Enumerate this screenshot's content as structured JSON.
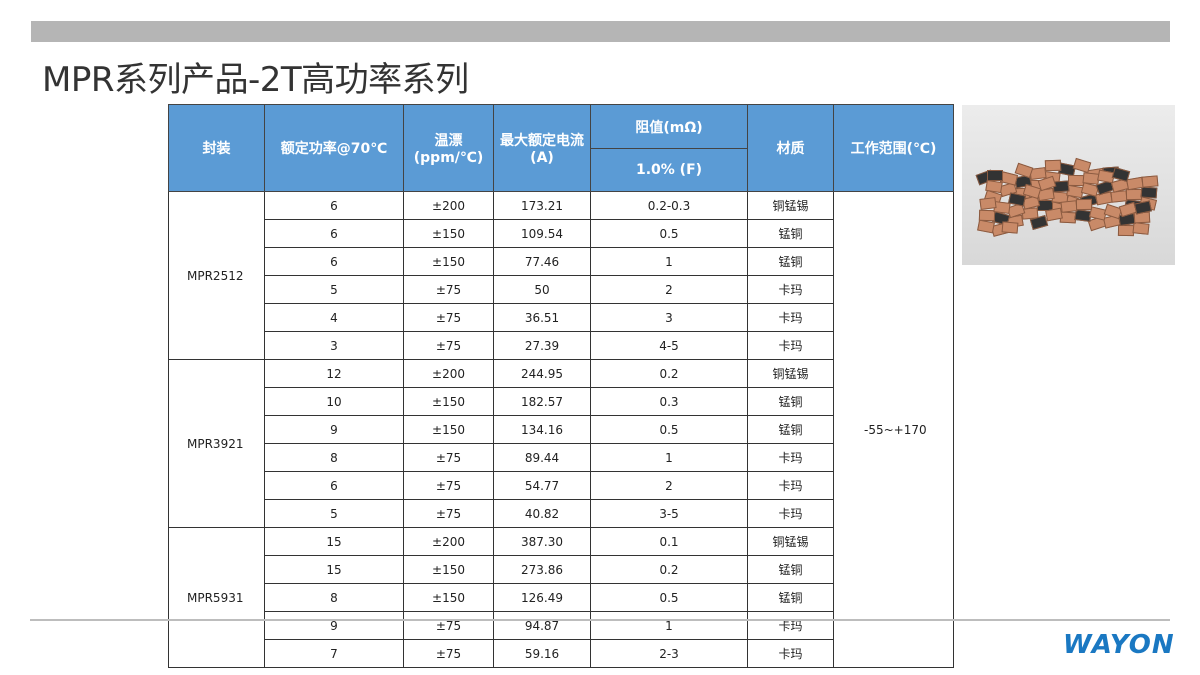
{
  "title": "MPR系列产品-2T高功率系列",
  "headers": {
    "package": "封装",
    "power": "额定功率@70℃",
    "tcr": "温漂\n(ppm/℃)",
    "current": "最大额定电流(A)",
    "resistance": "阻值(mΩ)",
    "tolerance": "1.0% (F)",
    "material": "材质",
    "range": "工作范围(℃)"
  },
  "operating_range": "-55~+170",
  "groups": [
    {
      "package": "MPR2512",
      "rows": [
        [
          "6",
          "±200",
          "173.21",
          "0.2-0.3",
          "铜锰锡"
        ],
        [
          "6",
          "±150",
          "109.54",
          "0.5",
          "锰铜"
        ],
        [
          "6",
          "±150",
          "77.46",
          "1",
          "锰铜"
        ],
        [
          "5",
          "±75",
          "50",
          "2",
          "卡玛"
        ],
        [
          "4",
          "±75",
          "36.51",
          "3",
          "卡玛"
        ],
        [
          "3",
          "±75",
          "27.39",
          "4-5",
          "卡玛"
        ]
      ]
    },
    {
      "package": "MPR3921",
      "rows": [
        [
          "12",
          "±200",
          "244.95",
          "0.2",
          "铜锰锡"
        ],
        [
          "10",
          "±150",
          "182.57",
          "0.3",
          "锰铜"
        ],
        [
          "9",
          "±150",
          "134.16",
          "0.5",
          "锰铜"
        ],
        [
          "8",
          "±75",
          "89.44",
          "1",
          "卡玛"
        ],
        [
          "6",
          "±75",
          "54.77",
          "2",
          "卡玛"
        ],
        [
          "5",
          "±75",
          "40.82",
          "3-5",
          "卡玛"
        ]
      ]
    },
    {
      "package": "MPR5931",
      "rows": [
        [
          "15",
          "±200",
          "387.30",
          "0.1",
          "铜锰锡"
        ],
        [
          "15",
          "±150",
          "273.86",
          "0.2",
          "锰铜"
        ],
        [
          "8",
          "±150",
          "126.49",
          "0.5",
          "锰铜"
        ],
        [
          "9",
          "±75",
          "94.87",
          "1",
          "卡玛"
        ],
        [
          "7",
          "±75",
          "59.16",
          "2-3",
          "卡玛"
        ]
      ]
    }
  ],
  "logo": "WAYON",
  "colors": {
    "header": "#5b9bd5",
    "logo": "#1a78c2",
    "bar": "#b5b5b5"
  }
}
